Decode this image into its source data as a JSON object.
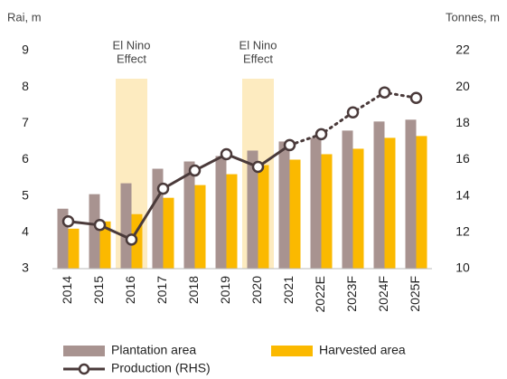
{
  "chart_data": {
    "type": "bar_line",
    "ylabel": "Rai, m",
    "y2label": "Tonnes, m",
    "categories": [
      "2014",
      "2015",
      "2016",
      "2017",
      "2018",
      "2019",
      "2020",
      "2021",
      "2022E",
      "2023F",
      "2024F",
      "2025F"
    ],
    "series": [
      {
        "name": "Plantation area",
        "color": "#a89390",
        "type": "bar",
        "values": [
          4.65,
          5.05,
          5.35,
          5.75,
          5.95,
          6.1,
          6.25,
          6.5,
          6.6,
          6.8,
          7.05,
          7.1
        ]
      },
      {
        "name": "Harvested area",
        "color": "#fbb900",
        "type": "bar",
        "values": [
          4.1,
          4.3,
          4.5,
          4.95,
          5.3,
          5.6,
          5.85,
          6.0,
          6.15,
          6.3,
          6.6,
          6.65
        ]
      },
      {
        "name": "Production (RHS)",
        "color": "#4a3a3a",
        "type": "line",
        "axis": "y2",
        "dotted_from": "2021",
        "values": [
          12.6,
          12.4,
          11.6,
          14.4,
          15.4,
          16.3,
          15.6,
          16.8,
          17.4,
          18.6,
          19.7,
          19.4
        ]
      }
    ],
    "annotations": [
      {
        "lines": [
          "El Nino",
          "Effect"
        ],
        "category": "2016",
        "color": "#fdebc0"
      },
      {
        "lines": [
          "El Nino",
          "Effect"
        ],
        "category": "2020",
        "color": "#fdebc0"
      }
    ],
    "ylim": [
      3,
      9
    ],
    "yticks": [
      3,
      4,
      5,
      6,
      7,
      8,
      9
    ],
    "y2lim": [
      10,
      22
    ],
    "y2ticks": [
      10,
      12,
      14,
      16,
      18,
      20,
      22
    ]
  }
}
